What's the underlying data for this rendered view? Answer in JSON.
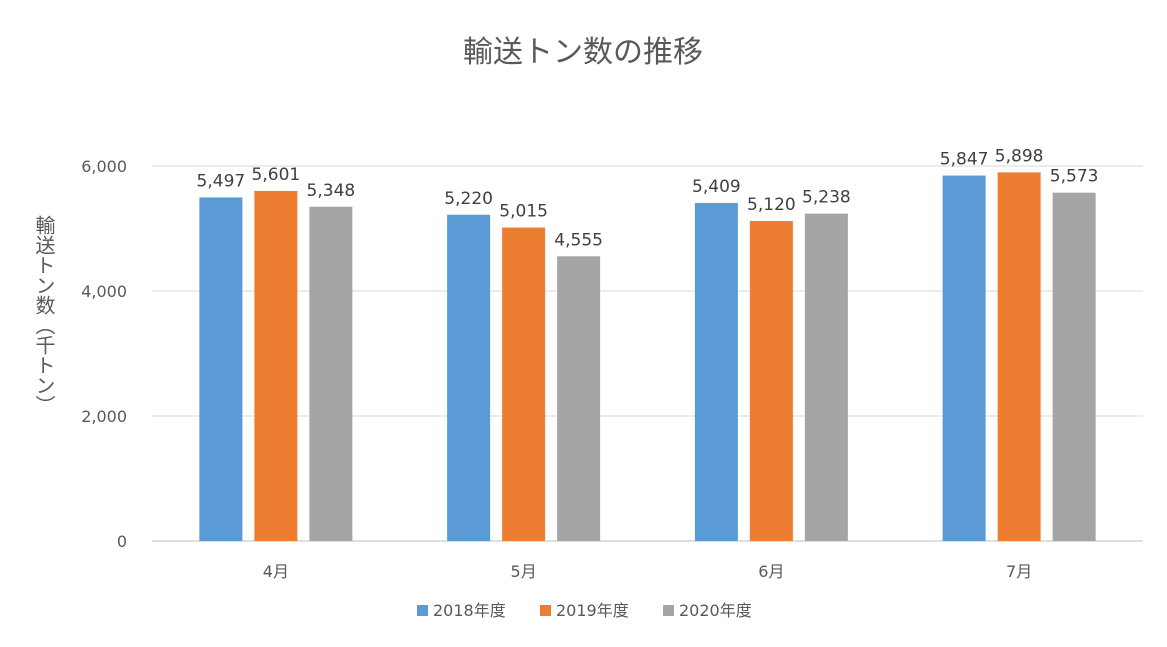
{
  "chart_data": {
    "type": "bar",
    "title": "輸送トン数の推移",
    "xlabel": "",
    "ylabel": "輸送トン数（千トン）",
    "ylim": [
      0,
      6000
    ],
    "yticks": [
      0,
      2000,
      4000,
      6000
    ],
    "ytick_labels": [
      "0",
      "2,000",
      "4,000",
      "6,000"
    ],
    "grid": true,
    "legend_position": "bottom",
    "categories": [
      "4月",
      "5月",
      "6月",
      "7月"
    ],
    "series": [
      {
        "name": "2018年度",
        "color": "#5B9BD5",
        "values": [
          5497,
          5220,
          5409,
          5847
        ],
        "labels": [
          "5,497",
          "5,220",
          "5,409",
          "5,847"
        ]
      },
      {
        "name": "2019年度",
        "color": "#ED7D31",
        "values": [
          5601,
          5015,
          5120,
          5898
        ],
        "labels": [
          "5,601",
          "5,015",
          "5,120",
          "5,898"
        ]
      },
      {
        "name": "2020年度",
        "color": "#A5A5A5",
        "values": [
          5348,
          4555,
          5238,
          5573
        ],
        "labels": [
          "5,348",
          "4,555",
          "5,238",
          "5,573"
        ]
      }
    ]
  }
}
